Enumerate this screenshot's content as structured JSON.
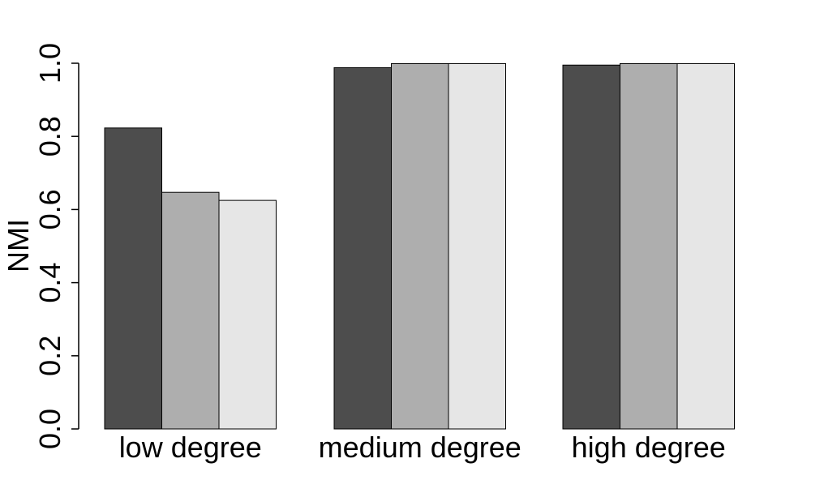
{
  "chart_data": {
    "type": "bar",
    "title": "",
    "xlabel": "",
    "ylabel": "NMI",
    "ylim": [
      0,
      1
    ],
    "yticks": [
      "0.0",
      "0.2",
      "0.4",
      "0.6",
      "0.8",
      "1.0"
    ],
    "categories": [
      "low degree",
      "medium degree",
      "high degree"
    ],
    "series": [
      {
        "values": [
          0.823,
          0.988,
          0.995
        ],
        "color": "#4d4d4d"
      },
      {
        "values": [
          0.647,
          0.999,
          0.999
        ],
        "color": "#aeaeae"
      },
      {
        "values": [
          0.625,
          0.999,
          0.999
        ],
        "color": "#e6e6e6"
      }
    ],
    "grid": false,
    "legend": "none"
  }
}
